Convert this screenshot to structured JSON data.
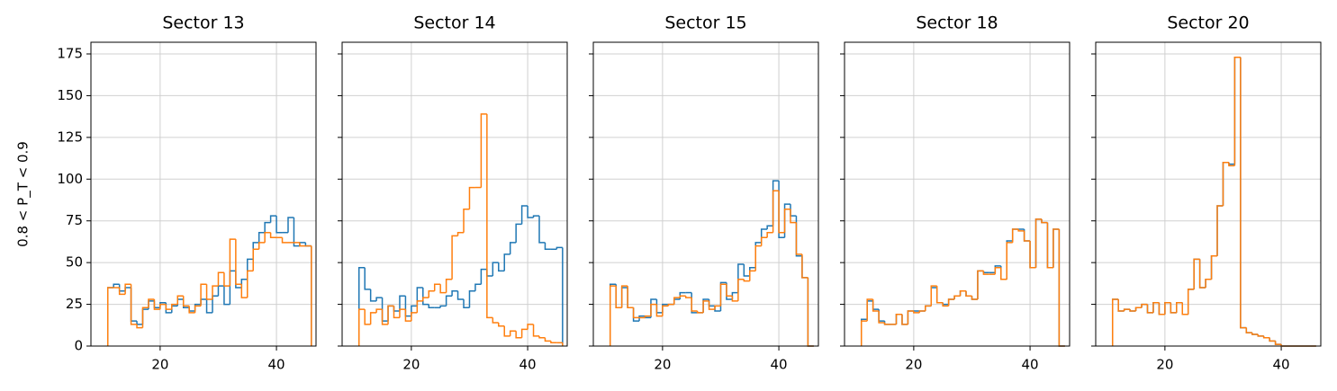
{
  "chart_data": [
    {
      "type": "histogram",
      "title": "Sector 13",
      "ylabel": "0.8 < P_T < 0.9",
      "bins": [
        11,
        12,
        13,
        14,
        15,
        16,
        17,
        18,
        19,
        20,
        21,
        22,
        23,
        24,
        25,
        26,
        27,
        28,
        29,
        30,
        31,
        32,
        33,
        34,
        35,
        36,
        37,
        38,
        39,
        40,
        41,
        42,
        43,
        44,
        45,
        46
      ],
      "series": [
        {
          "color": "#1f77b4",
          "values": [
            35,
            37,
            33,
            35,
            15,
            13,
            22,
            27,
            23,
            26,
            20,
            24,
            28,
            23,
            21,
            25,
            28,
            20,
            30,
            36,
            25,
            45,
            35,
            40,
            52,
            62,
            68,
            74,
            78,
            68,
            68,
            77,
            60,
            62,
            60
          ]
        },
        {
          "color": "#ff7f0e",
          "values": [
            35,
            35,
            31,
            37,
            13,
            11,
            23,
            28,
            22,
            25,
            22,
            25,
            30,
            24,
            20,
            24,
            37,
            28,
            36,
            44,
            36,
            64,
            37,
            29,
            45,
            58,
            62,
            68,
            65,
            65,
            62,
            62,
            62,
            60,
            60
          ]
        }
      ],
      "xlim": [
        8.1,
        46.8
      ],
      "xticks": [
        20,
        40
      ],
      "ylim": [
        0,
        182
      ],
      "yticks": [
        0,
        25,
        50,
        75,
        100,
        125,
        150,
        175
      ],
      "grid": true
    },
    {
      "type": "histogram",
      "title": "Sector 14",
      "bins": [
        11,
        12,
        13,
        14,
        15,
        16,
        17,
        18,
        19,
        20,
        21,
        22,
        23,
        24,
        25,
        26,
        27,
        28,
        29,
        30,
        31,
        32,
        33,
        34,
        35,
        36,
        37,
        38,
        39,
        40,
        41,
        42,
        43,
        44,
        45,
        46
      ],
      "series": [
        {
          "color": "#1f77b4",
          "values": [
            47,
            34,
            27,
            29,
            15,
            24,
            21,
            30,
            18,
            24,
            35,
            25,
            23,
            23,
            24,
            30,
            33,
            28,
            23,
            33,
            37,
            46,
            42,
            50,
            45,
            55,
            62,
            73,
            84,
            77,
            78,
            62,
            58,
            58,
            59
          ]
        },
        {
          "color": "#ff7f0e",
          "values": [
            22,
            13,
            20,
            22,
            13,
            24,
            17,
            22,
            15,
            20,
            27,
            29,
            33,
            37,
            32,
            40,
            66,
            68,
            82,
            95,
            95,
            139,
            17,
            14,
            12,
            6,
            9,
            5,
            10,
            13,
            6,
            5,
            3,
            2,
            2
          ]
        }
      ],
      "xlim": [
        8.1,
        46.8
      ],
      "xticks": [
        20,
        40
      ],
      "ylim": [
        0,
        182
      ],
      "yticks": [
        0,
        25,
        50,
        75,
        100,
        125,
        150,
        175
      ],
      "grid": true
    },
    {
      "type": "histogram",
      "title": "Sector 15",
      "bins": [
        11,
        12,
        13,
        14,
        15,
        16,
        17,
        18,
        19,
        20,
        21,
        22,
        23,
        24,
        25,
        26,
        27,
        28,
        29,
        30,
        31,
        32,
        33,
        34,
        35,
        36,
        37,
        38,
        39,
        40,
        41,
        42,
        43,
        44,
        45,
        46
      ],
      "series": [
        {
          "color": "#1f77b4",
          "values": [
            37,
            23,
            35,
            23,
            15,
            18,
            17,
            28,
            20,
            25,
            25,
            28,
            32,
            32,
            20,
            20,
            28,
            24,
            21,
            38,
            28,
            32,
            49,
            42,
            47,
            62,
            70,
            72,
            99,
            65,
            85,
            78,
            54,
            41,
            0
          ]
        },
        {
          "color": "#ff7f0e",
          "values": [
            36,
            23,
            36,
            23,
            17,
            17,
            18,
            25,
            18,
            24,
            25,
            29,
            30,
            29,
            21,
            20,
            27,
            22,
            24,
            37,
            30,
            27,
            40,
            39,
            45,
            60,
            65,
            68,
            93,
            68,
            82,
            74,
            55,
            41,
            0
          ]
        }
      ],
      "xlim": [
        8.1,
        46.8
      ],
      "xticks": [
        20,
        40
      ],
      "ylim": [
        0,
        182
      ],
      "yticks": [
        0,
        25,
        50,
        75,
        100,
        125,
        150,
        175
      ],
      "grid": true
    },
    {
      "type": "histogram",
      "title": "Sector 18",
      "bins": [
        11,
        12,
        13,
        14,
        15,
        16,
        17,
        18,
        19,
        20,
        21,
        22,
        23,
        24,
        25,
        26,
        27,
        28,
        29,
        30,
        31,
        32,
        33,
        34,
        35,
        36,
        37,
        38,
        39,
        40,
        41,
        42,
        43,
        44,
        45,
        46
      ],
      "series": [
        {
          "color": "#1f77b4",
          "values": [
            16,
            27,
            22,
            15,
            13,
            13,
            19,
            13,
            21,
            21,
            21,
            24,
            35,
            26,
            25,
            28,
            30,
            33,
            30,
            28,
            45,
            44,
            44,
            48,
            40,
            63,
            70,
            70,
            63,
            47,
            76,
            74,
            47,
            70,
            0
          ]
        },
        {
          "color": "#ff7f0e",
          "values": [
            15,
            28,
            21,
            14,
            13,
            13,
            19,
            13,
            21,
            20,
            21,
            24,
            36,
            26,
            24,
            28,
            30,
            33,
            30,
            28,
            45,
            43,
            43,
            47,
            40,
            62,
            70,
            69,
            63,
            47,
            76,
            74,
            47,
            70,
            0
          ]
        }
      ],
      "xlim": [
        8.1,
        46.8
      ],
      "xticks": [
        20,
        40
      ],
      "ylim": [
        0,
        182
      ],
      "yticks": [
        0,
        25,
        50,
        75,
        100,
        125,
        150,
        175
      ],
      "grid": true
    },
    {
      "type": "histogram",
      "title": "Sector 20",
      "bins": [
        11,
        12,
        13,
        14,
        15,
        16,
        17,
        18,
        19,
        20,
        21,
        22,
        23,
        24,
        25,
        26,
        27,
        28,
        29,
        30,
        31,
        32,
        33,
        34,
        35,
        36,
        37,
        38,
        39,
        40,
        41,
        42,
        43,
        44,
        45,
        46
      ],
      "series": [
        {
          "color": "#1f77b4",
          "values": [
            28,
            21,
            22,
            21,
            23,
            25,
            20,
            26,
            19,
            26,
            20,
            26,
            19,
            34,
            52,
            35,
            40,
            54,
            84,
            110,
            109,
            173,
            11,
            8,
            7,
            6,
            5,
            3,
            1,
            0,
            0,
            0,
            0,
            0,
            0
          ]
        },
        {
          "color": "#ff7f0e",
          "values": [
            28,
            21,
            22,
            21,
            23,
            25,
            20,
            26,
            19,
            26,
            20,
            26,
            19,
            34,
            52,
            35,
            40,
            54,
            84,
            110,
            108,
            173,
            11,
            8,
            7,
            6,
            5,
            3,
            1,
            0,
            0,
            0,
            0,
            0,
            0
          ]
        }
      ],
      "xlim": [
        8.1,
        46.8
      ],
      "xticks": [
        20,
        40
      ],
      "ylim": [
        0,
        182
      ],
      "yticks": [
        0,
        25,
        50,
        75,
        100,
        125,
        150,
        175
      ],
      "grid": true
    }
  ]
}
